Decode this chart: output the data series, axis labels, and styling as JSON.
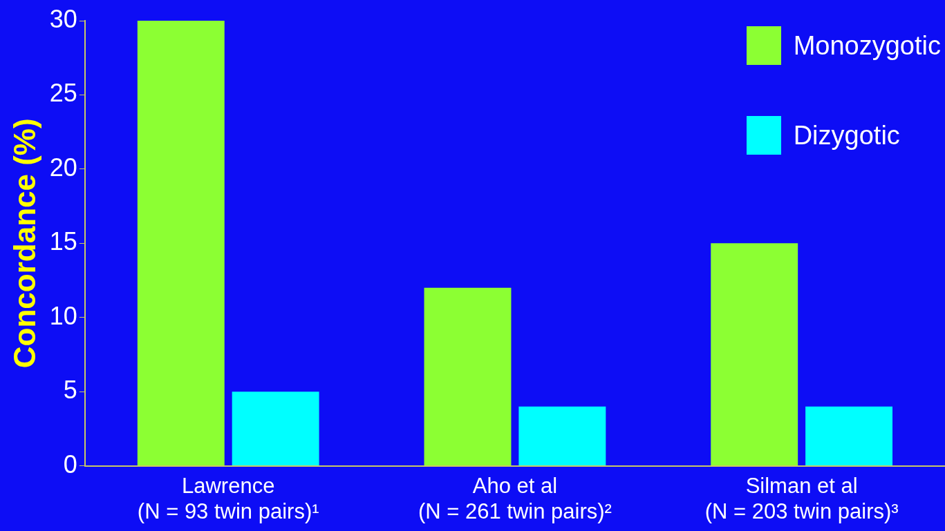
{
  "chart_data": {
    "type": "bar",
    "ylabel": "Concordance (%)",
    "categories": [
      "Lawrence\n(N = 93 twin pairs)¹",
      "Aho et al\n(N = 261 twin pairs)²",
      "Silman et al\n(N = 203 twin pairs)³"
    ],
    "series": [
      {
        "name": "Monozygotic",
        "color": "#8cff33",
        "values": [
          30,
          12,
          15
        ]
      },
      {
        "name": "Dizygotic",
        "color": "#00ffff",
        "values": [
          5,
          4,
          4
        ]
      }
    ],
    "ylim": [
      0,
      30
    ],
    "yticks": [
      0,
      5,
      10,
      15,
      20,
      25,
      30
    ],
    "grid": false,
    "legend": "top right"
  }
}
